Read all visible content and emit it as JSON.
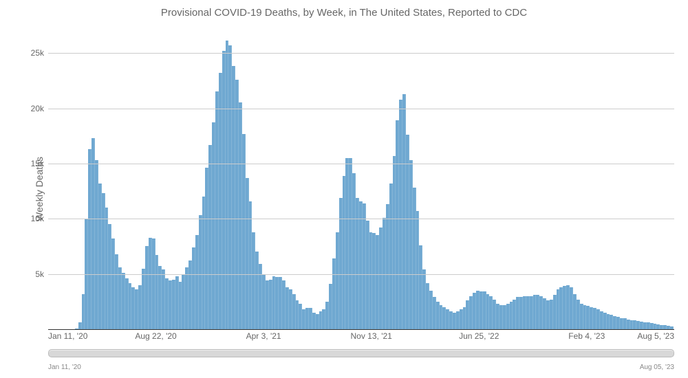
{
  "chart": {
    "type": "bar",
    "title": "Provisional COVID-19 Deaths, by Week, in The United States, Reported to CDC",
    "title_fontsize": 15,
    "title_color": "#666666",
    "ylabel": "Weekly Deaths",
    "label_fontsize": 14,
    "label_color": "#666666",
    "background_color": "#ffffff",
    "grid_color": "#cccccc",
    "axis_color": "#333333",
    "bar_color": "#6fa8d1",
    "bar_gap_ratio": 0.04,
    "ylim": [
      0,
      27000
    ],
    "yticks": [
      {
        "value": 5000,
        "label": "5k"
      },
      {
        "value": 10000,
        "label": "10k"
      },
      {
        "value": 15000,
        "label": "15k"
      },
      {
        "value": 20000,
        "label": "20k"
      },
      {
        "value": 25000,
        "label": "25k"
      }
    ],
    "xlabels": [
      {
        "index": 0,
        "label": "Jan 11, '20"
      },
      {
        "index": 32,
        "label": "Aug 22, '20"
      },
      {
        "index": 64,
        "label": "Apr 3, '21"
      },
      {
        "index": 96,
        "label": "Nov 13, '21"
      },
      {
        "index": 128,
        "label": "Jun 25, '22"
      },
      {
        "index": 160,
        "label": "Feb 4, '23"
      },
      {
        "index": 186,
        "label": "Aug 5, '23"
      }
    ],
    "xtick_fontsize": 12,
    "ytick_fontsize": 12,
    "values": [
      0,
      0,
      0,
      0,
      0,
      0,
      0,
      0,
      50,
      600,
      3200,
      10000,
      16300,
      17300,
      15300,
      13200,
      12300,
      11000,
      9500,
      8200,
      6800,
      5600,
      5100,
      4600,
      4200,
      3800,
      3600,
      4000,
      5500,
      7500,
      8300,
      8200,
      6700,
      5700,
      5400,
      4600,
      4400,
      4500,
      4800,
      4300,
      4900,
      5600,
      6200,
      7400,
      8500,
      10300,
      12000,
      14600,
      16700,
      18700,
      21500,
      23200,
      25200,
      26100,
      25700,
      23800,
      22600,
      20500,
      17700,
      13700,
      11600,
      8800,
      7000,
      5900,
      5000,
      4400,
      4500,
      4800,
      4700,
      4700,
      4400,
      3800,
      3600,
      3200,
      2600,
      2300,
      1800,
      1900,
      1900,
      1500,
      1400,
      1600,
      1800,
      2500,
      4100,
      6400,
      8800,
      11900,
      13900,
      15500,
      15500,
      14100,
      11900,
      11600,
      11400,
      9800,
      8800,
      8700,
      8500,
      9200,
      10100,
      11300,
      13200,
      15700,
      18900,
      20800,
      21300,
      17600,
      15300,
      12800,
      10700,
      7600,
      5400,
      4200,
      3500,
      2900,
      2500,
      2200,
      2000,
      1800,
      1600,
      1500,
      1600,
      1800,
      2000,
      2600,
      3000,
      3300,
      3500,
      3400,
      3400,
      3200,
      3000,
      2700,
      2300,
      2200,
      2200,
      2300,
      2500,
      2700,
      2900,
      2900,
      3000,
      3000,
      3000,
      3100,
      3100,
      3000,
      2800,
      2600,
      2700,
      3100,
      3600,
      3800,
      3900,
      4000,
      3800,
      3200,
      2700,
      2300,
      2200,
      2100,
      2000,
      1900,
      1800,
      1600,
      1500,
      1400,
      1300,
      1200,
      1100,
      1000,
      1000,
      900,
      800,
      800,
      750,
      700,
      650,
      600,
      550,
      500,
      450,
      400,
      350,
      300,
      250
    ],
    "slider": {
      "start_label": "Jan 11, '20",
      "end_label": "Aug 05, '23",
      "label_fontsize": 10,
      "track_color": "#d8d8d8",
      "track_border": "#bbbbbb"
    }
  }
}
